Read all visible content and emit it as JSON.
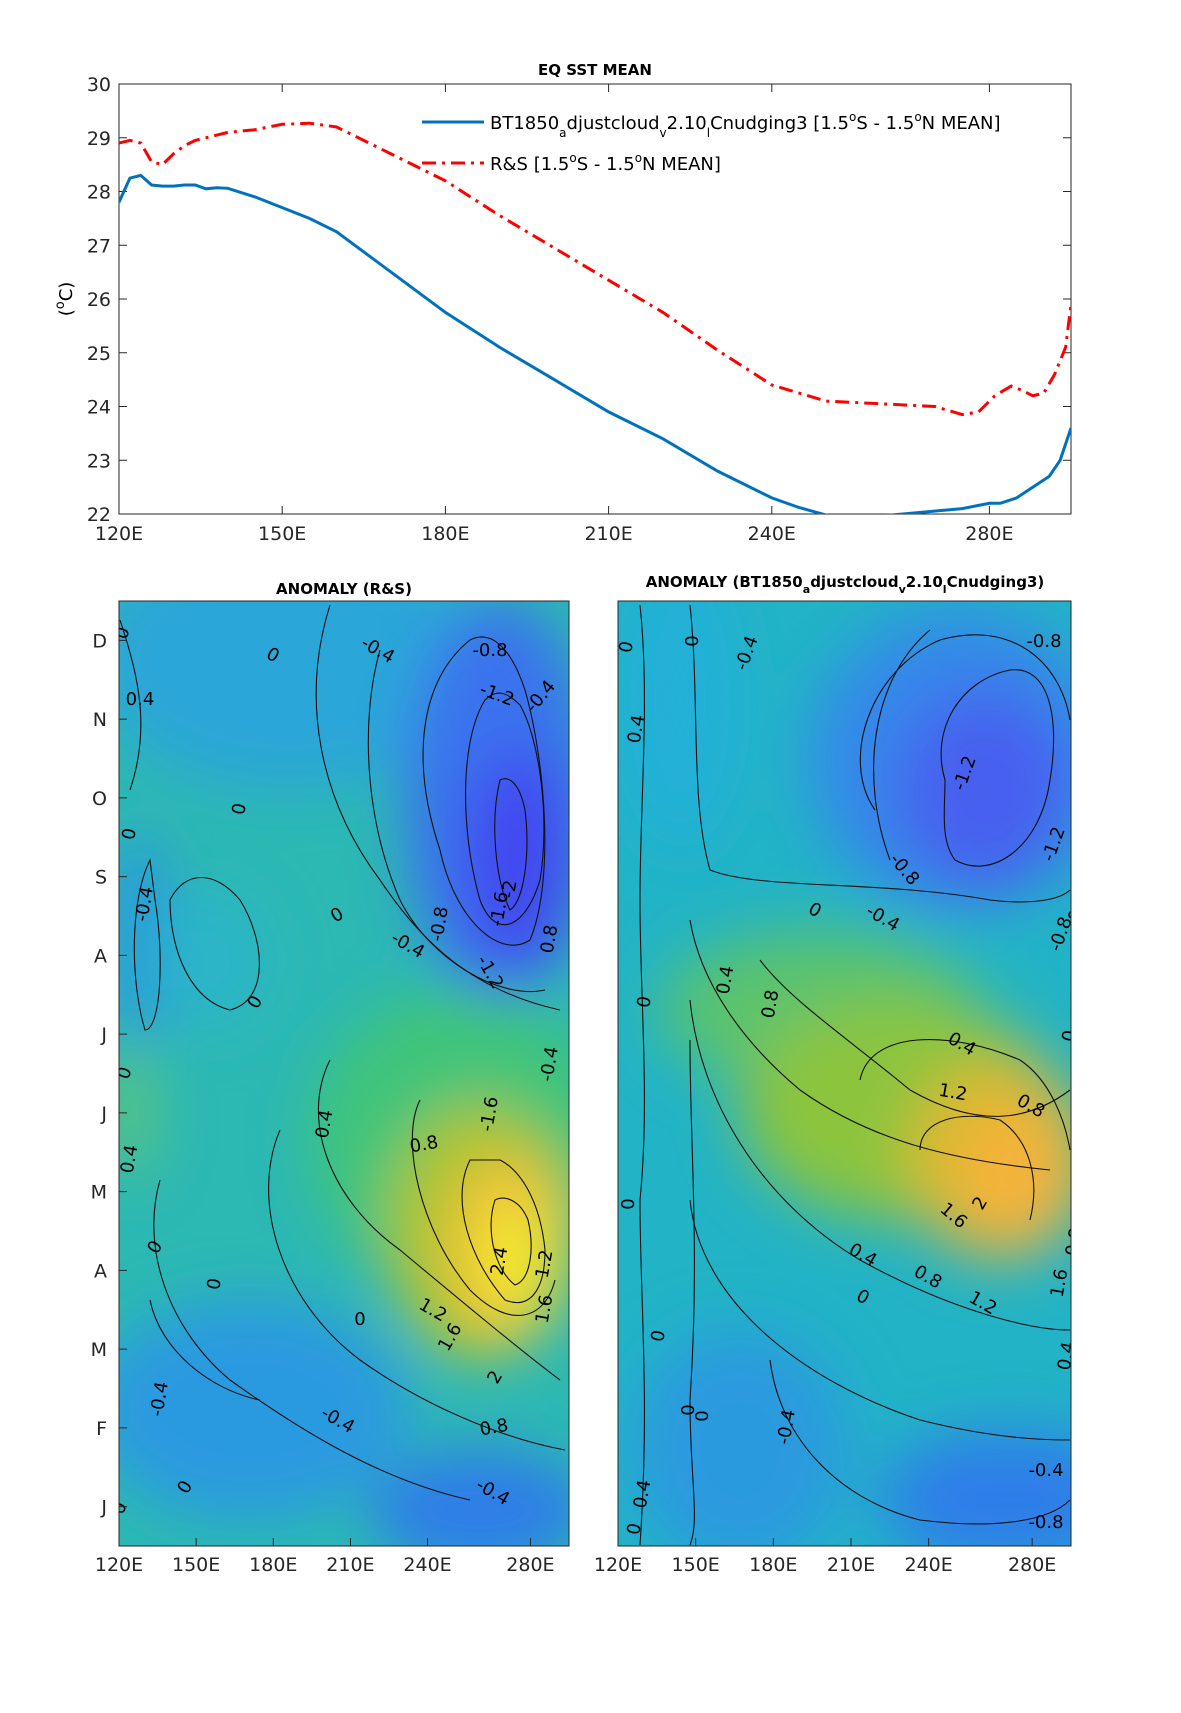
{
  "chart_data": [
    {
      "type": "line",
      "title": "EQ SST MEAN",
      "ylabel": "(°C)",
      "ylabel_parts": [
        "(",
        "o",
        "C)"
      ],
      "xlim": [
        120,
        295
      ],
      "ylim": [
        22,
        30
      ],
      "xticks": [
        120,
        150,
        180,
        210,
        240,
        280
      ],
      "xtick_labels": [
        "120E",
        "150E",
        "180E",
        "210E",
        "240E",
        "280E"
      ],
      "yticks": [
        22,
        23,
        24,
        25,
        26,
        27,
        28,
        29,
        30
      ],
      "legend_position": "top-right",
      "series": [
        {
          "name": "BT1850_adjustcloud_v2.10_lCnudging3 [1.5°S - 1.5°N MEAN]",
          "legend_parts": [
            "BT1850",
            "a",
            "djustcloud",
            "v",
            "2.10",
            "l",
            "Cnudging3 [1.5",
            "o",
            "S - 1.5",
            "o",
            "N MEAN]"
          ],
          "color": "#0072bd",
          "style": "solid",
          "x": [
            120,
            122,
            124,
            126,
            128,
            130,
            132,
            134,
            136,
            138,
            140,
            145,
            150,
            155,
            160,
            170,
            180,
            190,
            200,
            210,
            220,
            230,
            240,
            245,
            250,
            253,
            275,
            280,
            282,
            285,
            288,
            291,
            293,
            295
          ],
          "y": [
            27.8,
            28.25,
            28.3,
            28.12,
            28.1,
            28.1,
            28.12,
            28.12,
            28.05,
            28.07,
            28.06,
            27.9,
            27.7,
            27.5,
            27.25,
            26.5,
            25.75,
            25.1,
            24.5,
            23.9,
            23.4,
            22.8,
            22.3,
            22.12,
            21.98,
            21.9,
            22.1,
            22.2,
            22.2,
            22.3,
            22.5,
            22.7,
            23.0,
            23.6
          ]
        },
        {
          "name": "R&S [1.5°S - 1.5°N MEAN]",
          "legend_parts": [
            "R&S [1.5",
            "o",
            "S - 1.5",
            "o",
            "N MEAN]"
          ],
          "color": "#ff0000",
          "style": "dash-dot",
          "x": [
            120,
            122,
            124,
            126,
            128,
            130,
            132,
            134,
            136,
            138,
            140,
            145,
            150,
            155,
            160,
            170,
            180,
            190,
            200,
            210,
            220,
            230,
            240,
            250,
            260,
            270,
            275,
            278,
            281,
            284,
            286,
            288,
            290,
            292,
            294,
            295
          ],
          "y": [
            28.9,
            28.95,
            28.9,
            28.55,
            28.5,
            28.7,
            28.85,
            28.95,
            29.0,
            29.05,
            29.1,
            29.15,
            29.25,
            29.27,
            29.2,
            28.7,
            28.2,
            27.55,
            26.95,
            26.35,
            25.75,
            25.05,
            24.4,
            24.1,
            24.05,
            24.0,
            23.85,
            23.9,
            24.2,
            24.38,
            24.3,
            24.2,
            24.25,
            24.6,
            25.1,
            25.9
          ]
        }
      ]
    },
    {
      "type": "heatmap",
      "title": "ANOMALY (R&S)",
      "xticks": [
        120,
        150,
        180,
        210,
        240,
        280
      ],
      "xtick_labels": [
        "120E",
        "150E",
        "180E",
        "210E",
        "240E",
        "280E"
      ],
      "ytick_labels": [
        "J",
        "F",
        "M",
        "A",
        "M",
        "J",
        "J",
        "A",
        "S",
        "O",
        "N",
        "D"
      ],
      "contour_labels": [
        "0",
        "0.4",
        "-0.4",
        "-0.8",
        "-1.2",
        "-1.6",
        "-2",
        "0.8",
        "1.2",
        "1.6",
        "2",
        "2.4"
      ],
      "colormap": "parula"
    },
    {
      "type": "heatmap",
      "title": "ANOMALY (BT1850_adjustcloud_v2.10_lCnudging3)",
      "title_parts": [
        "ANOMALY (BT1850",
        "a",
        "djustcloud",
        "v",
        "2.10",
        "l",
        "Cnudging3)"
      ],
      "xticks": [
        120,
        150,
        180,
        210,
        240,
        280
      ],
      "xtick_labels": [
        "120E",
        "150E",
        "180E",
        "210E",
        "240E",
        "280E"
      ],
      "contour_labels": [
        "0",
        "0.4",
        "-0.4",
        "-0.8",
        "-1.2",
        "0.8",
        "1.2",
        "1.6",
        "2"
      ],
      "colormap": "parula"
    }
  ]
}
